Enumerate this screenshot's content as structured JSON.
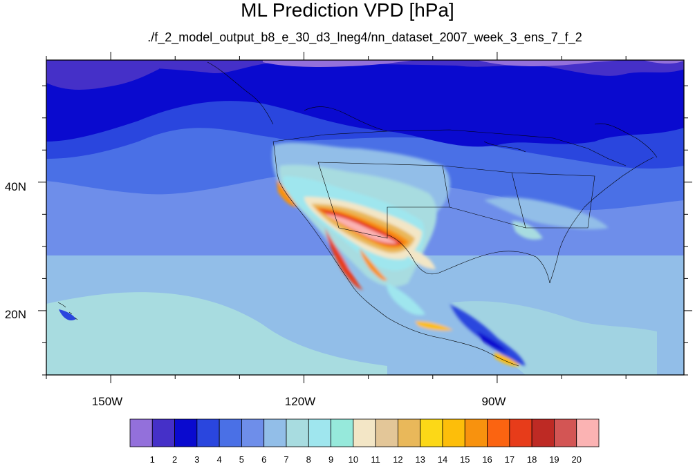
{
  "header": {
    "title": "ML Prediction VPD [hPa]",
    "subtitle": "./f_2_model_output_b8_e_30_d3_lneg4/nn_dataset_2007_week_3_ens_7_f_2"
  },
  "axes": {
    "lon_labels": [
      "150W",
      "120W",
      "90W"
    ],
    "lat_labels": [
      "40N",
      "20N"
    ]
  },
  "colorbar": {
    "labels": [
      "1",
      "2",
      "3",
      "4",
      "5",
      "6",
      "7",
      "8",
      "9",
      "10",
      "11",
      "12",
      "13",
      "14",
      "15",
      "16",
      "17",
      "18",
      "19",
      "20"
    ],
    "colors": [
      "#9370DB",
      "#4530C8",
      "#0A0ACF",
      "#2A46DE",
      "#4A70E6",
      "#6E8EEA",
      "#92BEE8",
      "#A8DCE0",
      "#9FE6EE",
      "#96E9DB",
      "#F3E6C6",
      "#E3C698",
      "#E9B85A",
      "#FCD817",
      "#FDBE0A",
      "#F8920E",
      "#FB6411",
      "#E73C1A",
      "#BE2A24",
      "#D35554",
      "#FBB3B3"
    ]
  },
  "chart_data": {
    "type": "heatmap",
    "title": "ML Prediction VPD [hPa]",
    "variable": "VPD",
    "units": "hPa",
    "domain": {
      "lon": [
        -160,
        -61
      ],
      "lat": [
        10,
        59
      ]
    },
    "lon_ticks": [
      -150,
      -120,
      -90
    ],
    "lat_ticks": [
      40,
      20
    ],
    "levels": [
      1,
      2,
      3,
      4,
      5,
      6,
      7,
      8,
      9,
      10,
      11,
      12,
      13,
      14,
      15,
      16,
      17,
      18,
      19,
      20
    ],
    "pattern": "Highest VPD (>17 hPa) over the US Southwest desert; 9-14 hPa over interior Mexico and Texas; lowest VPD (1-3) over the North Pacific, Canada and the northeastern US; 6-8 over the subtropical ocean."
  }
}
